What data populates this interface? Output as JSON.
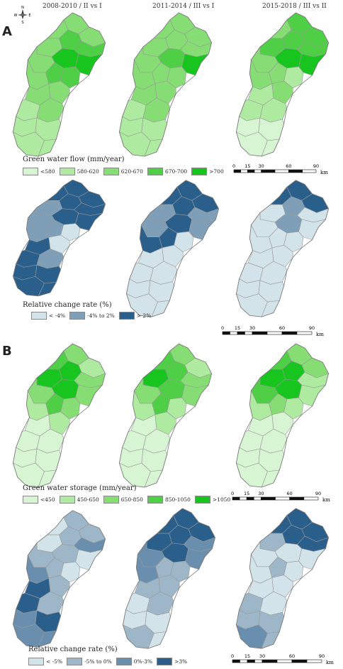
{
  "headers": [
    "2008-2010 / II vs I",
    "2011-2014 / III vs I",
    "2015-2018 / III vs II"
  ],
  "panels": [
    {
      "letter": "A"
    },
    {
      "letter": "B"
    }
  ],
  "legend_flow": {
    "title": "Green water flow (mm/year)",
    "items": [
      {
        "label": "<580",
        "color": "#d8f5d3"
      },
      {
        "label": "580-620",
        "color": "#aeea9f"
      },
      {
        "label": "620-670",
        "color": "#86dd74"
      },
      {
        "label": "670-700",
        "color": "#4fcf45"
      },
      {
        "label": ">700",
        "color": "#18c41e"
      }
    ]
  },
  "legend_flow_change": {
    "title": "Relative change rate (%)",
    "items": [
      {
        "label": "< -4%",
        "color": "#d3e3ea"
      },
      {
        "label": "-4% to 2%",
        "color": "#7f9fb9"
      },
      {
        "label": "> 2%",
        "color": "#2b5f8b"
      }
    ]
  },
  "legend_storage": {
    "title": "Green water storage (mm/year)",
    "items": [
      {
        "label": "<450",
        "color": "#d8f5d3"
      },
      {
        "label": "450-650",
        "color": "#aeea9f"
      },
      {
        "label": "650-850",
        "color": "#86dd74"
      },
      {
        "label": "850-1050",
        "color": "#4fcf45"
      },
      {
        "label": ">1050",
        "color": "#18c41e"
      }
    ]
  },
  "legend_storage_change": {
    "title": "Relative change rate (%)",
    "items": [
      {
        "label": "< -5%",
        "color": "#d3e3ea"
      },
      {
        "label": "-5% to 0%",
        "color": "#9db7c9"
      },
      {
        "label": "0%-3%",
        "color": "#6a8fae"
      },
      {
        "label": ">3%",
        "color": "#2b5f8b"
      }
    ]
  },
  "scalebar": {
    "ticks": [
      "0",
      "15",
      "30",
      "60",
      "90"
    ],
    "unit": "km"
  },
  "compass": {
    "n": "N",
    "s": "S",
    "e": "E",
    "w": "W"
  },
  "colors": {
    "map_fill": [
      "#d8f5d3",
      "#aeea9f",
      "#86dd74",
      "#4fcf45",
      "#18c41e"
    ],
    "change_fill": [
      "#d3e3ea",
      "#9db7c9",
      "#7f9fb9",
      "#2b5f8b"
    ]
  }
}
